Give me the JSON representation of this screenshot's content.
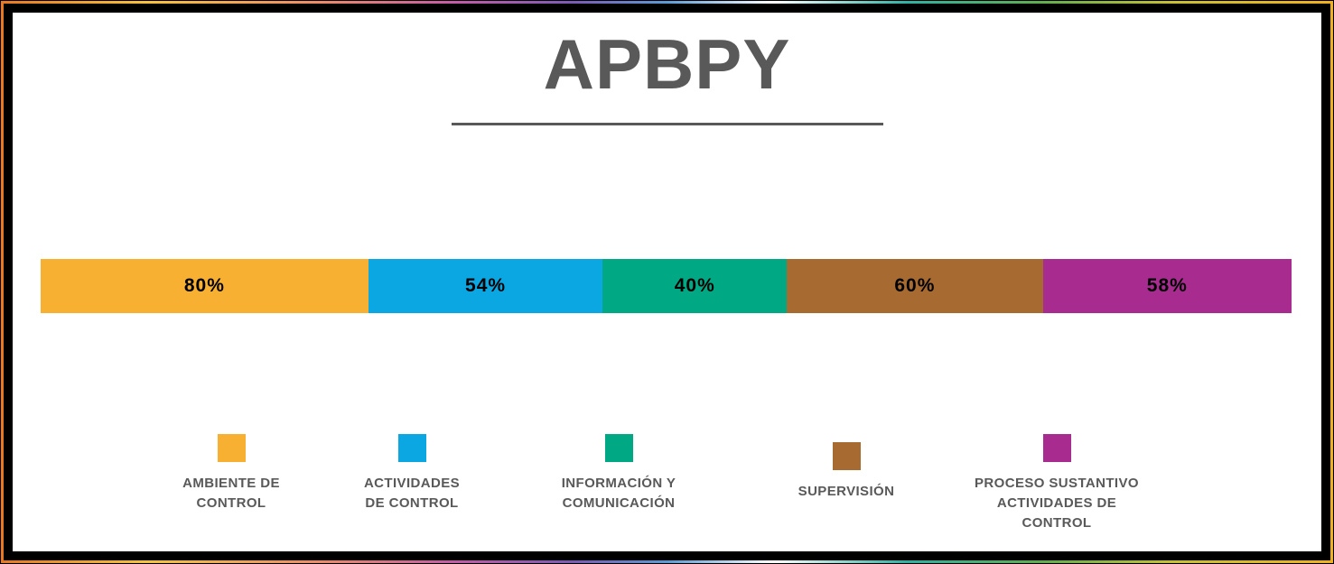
{
  "page": {
    "background_color": "#ffffff",
    "frame_colors": {
      "outer_border": "#000000",
      "gradient_ring": [
        "#e87722",
        "#f6c23d",
        "#ee8a67",
        "#c45ba8",
        "#7b5bb5",
        "#5b9bd5",
        "#ffffff",
        "#2fb1a3",
        "#5fae4e",
        "#c8c032",
        "#f2b01e"
      ],
      "inner_border": "#000000"
    },
    "title_color": "#595959",
    "legend_text_color": "#595959",
    "segment_label_color": "#000000"
  },
  "chart_data": {
    "type": "bar",
    "variant": "horizontal-stacked-percentage",
    "title": "APBPY",
    "categories": [
      "AMBIENTE DE CONTROL",
      "ACTIVIDADES DE CONTROL",
      "INFORMACIÓN Y COMUNICACIÓN",
      "SUPERVISIÓN",
      "PROCESO SUSTANTIVO ACTIVIDADES DE CONTROL"
    ],
    "values": [
      80,
      54,
      40,
      60,
      58
    ],
    "value_labels": [
      "80%",
      "54%",
      "40%",
      "60%",
      "58%"
    ],
    "colors": [
      "#F7B032",
      "#0AA7E3",
      "#00A884",
      "#A76A31",
      "#A82C90"
    ],
    "legend_position": "bottom",
    "legend_labels_multiline": [
      "AMBIENTE DE\nCONTROL",
      "ACTIVIDADES\nDE CONTROL",
      "INFORMACIÓN Y\nCOMUNICACIÓN",
      "SUPERVISIÓN",
      "PROCESO SUSTANTIVO\nACTIVIDADES DE\nCONTROL"
    ]
  }
}
